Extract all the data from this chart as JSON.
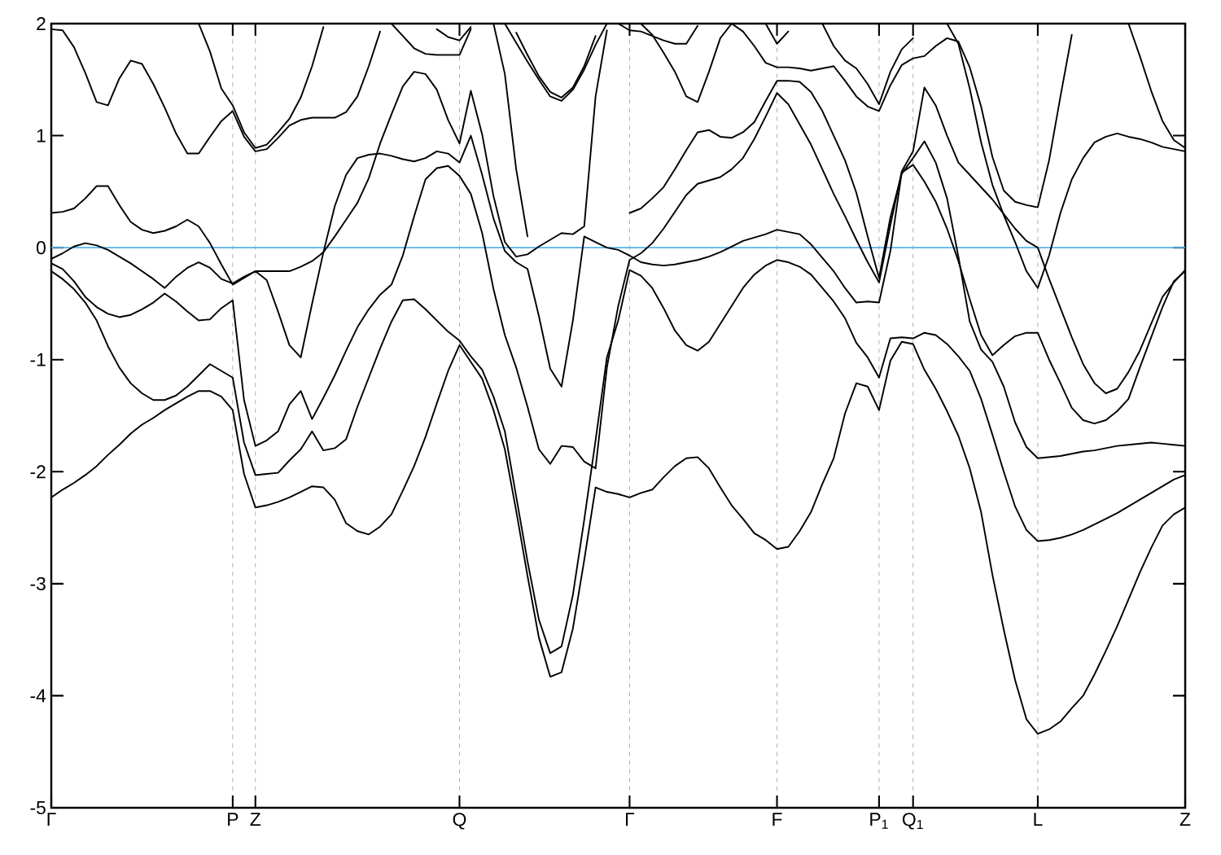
{
  "chart_data": {
    "type": "line",
    "color": "#000000",
    "grid": "x",
    "ylim": [
      -5,
      2
    ],
    "categories": [
      "Γ",
      null,
      null,
      null,
      null,
      null,
      null,
      null,
      null,
      null,
      null,
      null,
      null,
      null,
      null,
      null,
      "P",
      null,
      "Z",
      null,
      null,
      null,
      null,
      null,
      null,
      null,
      null,
      null,
      null,
      null,
      null,
      null,
      null,
      null,
      null,
      null,
      "Q",
      null,
      null,
      null,
      null,
      null,
      null,
      null,
      null,
      null,
      null,
      null,
      null,
      null,
      null,
      "Γ",
      null,
      null,
      null,
      null,
      null,
      null,
      null,
      null,
      null,
      null,
      null,
      null,
      "F",
      null,
      null,
      null,
      null,
      null,
      null,
      null,
      null,
      "P$_{1}$",
      null,
      null,
      "Q$_{1}$",
      null,
      null,
      null,
      null,
      null,
      null,
      null,
      null,
      null,
      null,
      "L",
      null,
      null,
      null,
      null,
      null,
      null,
      null,
      null,
      null,
      null,
      null,
      null,
      "Z"
    ],
    "yticks": [
      -5,
      -4,
      -3,
      -2,
      -1,
      0,
      1,
      2
    ],
    "ref_lines": [
      {
        "axis": "y",
        "value": 0,
        "color": "#56b4e9"
      }
    ],
    "series": [
      {
        "values": [
          1.95,
          1.94,
          1.79,
          1.56,
          1.3,
          1.27,
          1.51,
          1.67,
          1.64,
          1.46,
          1.25,
          1.02,
          0.84,
          0.84,
          0.99,
          1.13,
          1.22,
          0.99,
          0.86,
          0.88,
          0.98,
          1.09,
          1.14,
          1.16,
          1.16,
          1.16,
          1.21,
          1.35,
          1.62,
          1.93,
          null,
          null,
          null,
          null,
          null,
          null,
          null,
          null,
          null,
          null,
          null,
          null,
          null,
          null,
          null,
          null,
          null,
          null,
          null,
          null,
          null,
          null,
          null,
          null,
          null,
          null,
          null,
          null,
          null,
          null,
          null,
          null,
          null,
          null,
          null,
          null,
          null,
          null,
          null,
          null,
          null,
          null,
          null,
          null,
          null,
          null,
          null,
          null,
          null,
          null,
          null,
          null,
          null,
          null,
          null,
          null,
          null,
          null,
          null,
          null,
          null,
          null,
          null,
          null,
          null,
          null,
          null,
          null,
          null,
          null,
          null
        ]
      },
      {
        "values": [
          null,
          null,
          null,
          null,
          null,
          null,
          null,
          null,
          null,
          null,
          null,
          null,
          null,
          2.0,
          1.75,
          1.42,
          1.27,
          1.03,
          0.89,
          0.92,
          1.03,
          1.15,
          1.34,
          1.62,
          1.97,
          null,
          null,
          null,
          null,
          null,
          null,
          null,
          null,
          null,
          null,
          null,
          null,
          null,
          null,
          null,
          null,
          null,
          null,
          null,
          null,
          null,
          null,
          null,
          null,
          null,
          null,
          null,
          null,
          null,
          null,
          null,
          null,
          null,
          null,
          null,
          null,
          null,
          null,
          null,
          null,
          null,
          null,
          null,
          null,
          null,
          null,
          null,
          null,
          null,
          null,
          null,
          null,
          null,
          null,
          null,
          null,
          null,
          null,
          null,
          null,
          null,
          null,
          null,
          null,
          null,
          null,
          null,
          null,
          null,
          null,
          null,
          null,
          null,
          null,
          null,
          null
        ]
      },
      {
        "values": [
          null,
          null,
          null,
          null,
          null,
          null,
          null,
          null,
          null,
          null,
          null,
          null,
          null,
          null,
          null,
          null,
          null,
          null,
          null,
          null,
          null,
          null,
          null,
          null,
          null,
          null,
          null,
          null,
          null,
          null,
          2.0,
          1.89,
          1.78,
          1.73,
          1.72,
          1.72,
          1.72,
          1.95,
          null,
          null,
          null,
          null,
          null,
          null,
          null,
          null,
          null,
          null,
          null,
          null,
          null,
          null,
          null,
          null,
          null,
          null,
          null,
          null,
          null,
          null,
          null,
          null,
          null,
          null,
          null,
          null,
          null,
          null,
          null,
          null,
          null,
          null,
          null,
          null,
          null,
          null,
          null,
          null,
          null,
          null,
          null,
          null,
          null,
          null,
          null,
          null,
          null,
          null,
          null,
          null,
          null,
          null,
          null,
          null,
          null,
          null,
          null,
          null,
          null,
          null,
          null
        ]
      },
      {
        "values": [
          null,
          null,
          null,
          null,
          null,
          null,
          null,
          null,
          null,
          null,
          null,
          null,
          null,
          null,
          null,
          null,
          null,
          null,
          null,
          null,
          null,
          null,
          null,
          null,
          null,
          null,
          null,
          null,
          null,
          null,
          null,
          null,
          null,
          null,
          1.95,
          1.88,
          1.85,
          1.97,
          null,
          null,
          null,
          null,
          null,
          null,
          null,
          null,
          null,
          null,
          null,
          null,
          null,
          null,
          null,
          null,
          null,
          null,
          null,
          null,
          null,
          null,
          null,
          null,
          null,
          null,
          null,
          null,
          null,
          null,
          null,
          null,
          null,
          null,
          null,
          null,
          null,
          null,
          null,
          null,
          null,
          null,
          null,
          null,
          null,
          null,
          null,
          null,
          null,
          null,
          null,
          null,
          null,
          null,
          null,
          null,
          null,
          null,
          null,
          null,
          null,
          null,
          null
        ]
      },
      {
        "values": [
          0.31,
          0.32,
          0.35,
          0.44,
          0.55,
          0.55,
          0.38,
          0.23,
          0.16,
          0.13,
          0.15,
          0.19,
          0.25,
          0.19,
          0.04,
          -0.15,
          -0.33,
          -0.27,
          -0.21,
          -0.29,
          -0.57,
          -0.87,
          -0.98,
          -0.5,
          -0.04,
          0.37,
          0.65,
          0.8,
          0.83,
          0.84,
          0.82,
          0.79,
          0.77,
          0.8,
          0.86,
          0.84,
          0.76,
          1.0,
          0.65,
          0.26,
          -0.03,
          -0.13,
          -0.19,
          -0.61,
          -1.08,
          -1.24,
          -0.65,
          0.1,
          0.05,
          0.0,
          -0.02,
          -0.07,
          -0.13,
          -0.15,
          -0.16,
          -0.15,
          -0.13,
          -0.11,
          -0.08,
          -0.04,
          0.01,
          0.06,
          0.09,
          0.12,
          0.16,
          0.14,
          0.12,
          0.03,
          -0.09,
          -0.21,
          -0.36,
          -0.49,
          -0.48,
          -0.49,
          -0.03,
          0.67,
          0.74,
          0.59,
          0.41,
          0.17,
          -0.12,
          -0.46,
          -0.78,
          -0.96,
          -0.87,
          -0.79,
          -0.76,
          -0.76,
          -1.0,
          -1.21,
          -1.43,
          -1.54,
          -1.57,
          -1.54,
          -1.46,
          -1.35,
          -1.07,
          -0.8,
          -0.53,
          -0.3,
          -0.21
        ]
      },
      {
        "values": [
          -0.1,
          -0.05,
          0.01,
          0.04,
          0.02,
          -0.02,
          -0.08,
          -0.14,
          -0.21,
          -0.28,
          -0.36,
          -0.26,
          -0.18,
          -0.13,
          -0.18,
          -0.28,
          -0.32,
          -0.26,
          -0.21,
          -0.21,
          -0.21,
          -0.21,
          -0.17,
          -0.12,
          -0.04,
          0.1,
          0.25,
          0.4,
          0.62,
          0.93,
          1.19,
          1.44,
          1.57,
          1.55,
          1.41,
          1.14,
          0.93,
          1.4,
          1.01,
          0.46,
          0.05,
          -0.08,
          -0.06,
          0.01,
          0.07,
          0.13,
          0.12,
          0.19,
          1.35,
          1.94,
          null,
          null,
          null,
          null,
          null,
          null,
          null,
          null,
          null,
          null,
          null,
          null,
          null,
          null,
          null,
          null,
          null,
          null,
          null,
          null,
          null,
          null,
          null,
          null,
          null,
          null,
          null,
          null,
          null,
          null,
          null,
          null,
          null,
          null,
          null,
          null,
          null,
          null,
          null,
          null,
          null,
          null,
          null,
          null,
          null,
          null,
          null,
          null,
          null,
          null,
          null
        ]
      },
      {
        "values": [
          -0.14,
          -0.19,
          -0.3,
          -0.44,
          -0.53,
          -0.59,
          -0.62,
          -0.6,
          -0.55,
          -0.49,
          -0.41,
          -0.48,
          -0.57,
          -0.65,
          -0.64,
          -0.54,
          -0.47,
          -1.36,
          -1.77,
          -1.72,
          -1.64,
          -1.4,
          -1.28,
          -1.53,
          -1.34,
          -1.14,
          -0.92,
          -0.71,
          -0.55,
          -0.42,
          -0.33,
          -0.07,
          0.28,
          0.61,
          0.71,
          0.73,
          0.64,
          0.48,
          0.13,
          -0.37,
          -0.78,
          -1.07,
          -1.42,
          -1.8,
          -1.93,
          -1.77,
          -1.78,
          -1.91,
          -1.97,
          -1.07,
          -0.52,
          -0.11,
          -0.05,
          0.04,
          0.17,
          0.32,
          0.47,
          0.57,
          0.6,
          0.63,
          0.7,
          0.8,
          0.97,
          1.17,
          1.38,
          1.28,
          1.1,
          0.92,
          0.7,
          0.48,
          0.28,
          0.07,
          -0.13,
          -0.31,
          0.2,
          0.68,
          0.86,
          1.43,
          1.27,
          1.0,
          0.76,
          0.65,
          0.54,
          0.43,
          0.3,
          0.17,
          0.06,
          0.0,
          -0.28,
          -0.54,
          -0.8,
          -1.04,
          -1.21,
          -1.3,
          -1.26,
          -1.11,
          -0.92,
          -0.68,
          -0.44,
          -0.31,
          -0.2
        ]
      },
      {
        "values": [
          -0.21,
          -0.28,
          -0.37,
          -0.49,
          -0.65,
          -0.88,
          -1.07,
          -1.21,
          -1.3,
          -1.36,
          -1.36,
          -1.32,
          -1.24,
          -1.14,
          -1.04,
          -1.1,
          -1.16,
          -1.74,
          -2.03,
          -2.02,
          -2.01,
          -1.9,
          -1.8,
          -1.64,
          -1.81,
          -1.79,
          -1.71,
          -1.42,
          -1.16,
          -0.9,
          -0.66,
          -0.47,
          -0.46,
          -0.55,
          -0.65,
          -0.75,
          -0.83,
          -0.97,
          -1.09,
          -1.33,
          -1.64,
          -2.22,
          -2.8,
          -3.32,
          -3.62,
          -3.56,
          -3.1,
          -2.43,
          -1.72,
          -0.98,
          -0.65,
          -0.2,
          -0.25,
          -0.36,
          -0.54,
          -0.74,
          -0.87,
          -0.92,
          -0.84,
          -0.68,
          -0.52,
          -0.36,
          -0.24,
          -0.16,
          -0.11,
          -0.13,
          -0.17,
          -0.24,
          -0.36,
          -0.48,
          -0.63,
          -0.85,
          -0.98,
          -1.16,
          -0.81,
          -0.8,
          -0.81,
          -0.76,
          -0.78,
          -0.86,
          -0.97,
          -1.1,
          -1.35,
          -1.67,
          -2.0,
          -2.31,
          -2.52,
          -2.62,
          -2.61,
          -2.59,
          -2.56,
          -2.52,
          -2.47,
          -2.42,
          -2.37,
          -2.31,
          -2.25,
          -2.19,
          -2.13,
          -2.07,
          -2.03
        ]
      },
      {
        "values": [
          null,
          null,
          null,
          null,
          null,
          null,
          null,
          null,
          null,
          null,
          null,
          null,
          null,
          null,
          null,
          null,
          null,
          null,
          null,
          null,
          null,
          null,
          null,
          null,
          null,
          null,
          null,
          null,
          null,
          null,
          null,
          null,
          null,
          null,
          null,
          null,
          null,
          null,
          null,
          null,
          null,
          null,
          null,
          null,
          null,
          null,
          null,
          null,
          null,
          null,
          2.0,
          1.94,
          1.93,
          1.89,
          1.85,
          1.82,
          1.82,
          1.98,
          null,
          null,
          null,
          null,
          null,
          null,
          null,
          null,
          null,
          null,
          null,
          null,
          null,
          null,
          null,
          null,
          null,
          null,
          null,
          null,
          null,
          null,
          null,
          null,
          null,
          null,
          null,
          null,
          null,
          null,
          null,
          null,
          null,
          null,
          null,
          null,
          null,
          null,
          null,
          null,
          null,
          null,
          null
        ]
      },
      {
        "values": [
          null,
          null,
          null,
          null,
          null,
          null,
          null,
          null,
          null,
          null,
          null,
          null,
          null,
          null,
          null,
          null,
          null,
          null,
          null,
          null,
          null,
          null,
          null,
          null,
          null,
          null,
          null,
          null,
          null,
          null,
          null,
          null,
          null,
          null,
          null,
          null,
          null,
          null,
          null,
          null,
          null,
          null,
          null,
          null,
          null,
          null,
          null,
          null,
          null,
          null,
          null,
          null,
          2.0,
          1.9,
          1.74,
          1.57,
          1.35,
          1.3,
          1.57,
          1.87,
          2.0,
          1.93,
          1.8,
          1.65,
          1.61,
          1.61,
          1.6,
          1.58,
          1.6,
          1.62,
          1.49,
          1.35,
          1.26,
          1.22,
          1.45,
          1.63,
          1.69,
          1.71,
          1.8,
          1.87,
          1.84,
          1.61,
          1.26,
          0.81,
          0.51,
          0.41,
          0.38,
          0.36,
          0.78,
          1.35,
          1.9,
          null,
          null,
          null,
          null,
          null,
          null,
          null,
          null,
          null,
          null
        ]
      },
      {
        "values": [
          null,
          null,
          null,
          null,
          null,
          null,
          null,
          null,
          null,
          null,
          null,
          null,
          null,
          null,
          null,
          null,
          null,
          null,
          null,
          null,
          null,
          null,
          null,
          null,
          null,
          null,
          null,
          null,
          null,
          null,
          null,
          null,
          null,
          null,
          null,
          null,
          null,
          null,
          null,
          null,
          2.0,
          1.83,
          1.66,
          1.5,
          1.35,
          1.31,
          1.41,
          1.59,
          1.81,
          2.0,
          null,
          null,
          null,
          null,
          null,
          null,
          null,
          null,
          null,
          null,
          null,
          null,
          null,
          null,
          null,
          null,
          null,
          null,
          null,
          null,
          null,
          null,
          null,
          null,
          null,
          null,
          null,
          null,
          null,
          null,
          null,
          null,
          null,
          null,
          null,
          null,
          null,
          null,
          null,
          null,
          null,
          null,
          null,
          null,
          null,
          null,
          null,
          null,
          null,
          null,
          null
        ]
      },
      {
        "values": [
          null,
          null,
          null,
          null,
          null,
          null,
          null,
          null,
          null,
          null,
          null,
          null,
          null,
          null,
          null,
          null,
          null,
          null,
          null,
          null,
          null,
          null,
          null,
          null,
          null,
          null,
          null,
          null,
          null,
          null,
          null,
          null,
          null,
          null,
          null,
          null,
          null,
          null,
          null,
          null,
          null,
          1.92,
          1.72,
          1.53,
          1.39,
          1.34,
          1.43,
          1.62,
          1.89,
          null,
          null,
          null,
          null,
          null,
          null,
          null,
          null,
          null,
          null,
          null,
          null,
          null,
          null,
          null,
          null,
          null,
          null,
          null,
          null,
          null,
          null,
          null,
          null,
          null,
          null,
          null,
          null,
          null,
          null,
          null,
          null,
          null,
          null,
          null,
          null,
          null,
          null,
          null,
          null,
          null,
          null,
          null,
          null,
          null,
          null,
          null,
          null,
          null,
          null,
          null,
          null
        ]
      },
      {
        "values": [
          null,
          null,
          null,
          null,
          null,
          null,
          null,
          null,
          null,
          null,
          null,
          null,
          null,
          null,
          null,
          null,
          null,
          null,
          null,
          null,
          null,
          null,
          null,
          null,
          null,
          null,
          null,
          null,
          null,
          null,
          null,
          null,
          null,
          null,
          null,
          null,
          null,
          null,
          null,
          2.0,
          1.55,
          0.7,
          0.1,
          null,
          null,
          null,
          null,
          null,
          null,
          null,
          null,
          null,
          null,
          null,
          null,
          null,
          null,
          null,
          null,
          null,
          null,
          null,
          null,
          null,
          null,
          null,
          null,
          null,
          null,
          null,
          null,
          null,
          null,
          null,
          null,
          null,
          null,
          null,
          null,
          null,
          null,
          null,
          null,
          null,
          null,
          null,
          null,
          null,
          null,
          null,
          null,
          null,
          null,
          null,
          null,
          null,
          null,
          null,
          null,
          null,
          null
        ]
      },
      {
        "values": [
          null,
          null,
          null,
          null,
          null,
          null,
          null,
          null,
          null,
          null,
          null,
          null,
          null,
          null,
          null,
          null,
          null,
          null,
          null,
          null,
          null,
          null,
          null,
          null,
          null,
          null,
          null,
          null,
          null,
          null,
          null,
          null,
          null,
          null,
          null,
          null,
          null,
          null,
          null,
          null,
          null,
          null,
          null,
          null,
          null,
          null,
          null,
          null,
          null,
          null,
          null,
          0.31,
          0.35,
          0.44,
          0.54,
          0.7,
          0.87,
          1.03,
          1.05,
          0.99,
          0.98,
          1.03,
          1.12,
          1.31,
          1.49,
          1.49,
          1.48,
          1.39,
          1.22,
          1.0,
          0.78,
          0.49,
          0.1,
          -0.27,
          0.27,
          0.66,
          0.8,
          0.95,
          0.76,
          0.44,
          -0.08,
          -0.66,
          -0.91,
          -1.02,
          -1.24,
          -1.56,
          -1.78,
          -1.88,
          -1.87,
          -1.86,
          -1.84,
          -1.82,
          -1.81,
          -1.79,
          -1.77,
          -1.76,
          -1.75,
          -1.74,
          -1.75,
          -1.76,
          -1.77
        ]
      },
      {
        "values": [
          null,
          null,
          null,
          null,
          null,
          null,
          null,
          null,
          null,
          null,
          null,
          null,
          null,
          null,
          null,
          null,
          null,
          null,
          null,
          null,
          null,
          null,
          null,
          null,
          null,
          null,
          null,
          null,
          null,
          null,
          null,
          null,
          null,
          null,
          null,
          null,
          null,
          null,
          null,
          null,
          null,
          null,
          null,
          null,
          null,
          null,
          null,
          null,
          null,
          null,
          null,
          null,
          null,
          null,
          null,
          null,
          null,
          null,
          null,
          null,
          null,
          null,
          null,
          null,
          null,
          null,
          null,
          null,
          2.0,
          1.8,
          1.67,
          1.6,
          1.46,
          1.28,
          1.57,
          1.77,
          1.87,
          null,
          null,
          null,
          null,
          null,
          null,
          null,
          null,
          null,
          null,
          null,
          null,
          null,
          null,
          null,
          null,
          null,
          null,
          null,
          null,
          null,
          null,
          null,
          null
        ]
      },
      {
        "values": [
          null,
          null,
          null,
          null,
          null,
          null,
          null,
          null,
          null,
          null,
          null,
          null,
          null,
          null,
          null,
          null,
          null,
          null,
          null,
          null,
          null,
          null,
          null,
          null,
          null,
          null,
          null,
          null,
          null,
          null,
          null,
          null,
          null,
          null,
          null,
          null,
          null,
          null,
          null,
          null,
          null,
          null,
          null,
          null,
          null,
          null,
          null,
          null,
          null,
          null,
          null,
          null,
          null,
          null,
          null,
          null,
          null,
          null,
          null,
          null,
          null,
          null,
          null,
          2.0,
          1.82,
          1.93,
          null,
          null,
          null,
          null,
          null,
          null,
          null,
          null,
          null,
          null,
          null,
          null,
          null,
          null,
          null,
          null,
          null,
          null,
          null,
          null,
          null,
          null,
          null,
          null,
          null,
          null,
          null,
          null,
          null,
          null,
          null,
          null,
          null,
          null,
          null
        ]
      },
      {
        "values": [
          null,
          null,
          null,
          null,
          null,
          null,
          null,
          null,
          null,
          null,
          null,
          null,
          null,
          null,
          null,
          null,
          null,
          null,
          null,
          null,
          null,
          null,
          null,
          null,
          null,
          null,
          null,
          null,
          null,
          null,
          null,
          null,
          null,
          null,
          null,
          null,
          null,
          null,
          null,
          null,
          null,
          null,
          null,
          null,
          null,
          null,
          null,
          null,
          null,
          null,
          null,
          null,
          null,
          null,
          null,
          null,
          null,
          null,
          null,
          null,
          null,
          null,
          null,
          null,
          null,
          null,
          null,
          null,
          null,
          null,
          null,
          null,
          null,
          null,
          null,
          null,
          null,
          null,
          null,
          2.0,
          1.82,
          1.42,
          0.94,
          0.56,
          0.29,
          0.05,
          -0.21,
          -0.36,
          -0.07,
          0.31,
          0.61,
          0.8,
          0.94,
          0.99,
          1.02,
          0.99,
          0.97,
          0.94,
          0.9,
          0.88,
          0.86
        ]
      },
      {
        "values": [
          null,
          null,
          null,
          null,
          null,
          null,
          null,
          null,
          null,
          null,
          null,
          null,
          null,
          null,
          null,
          null,
          null,
          null,
          null,
          null,
          null,
          null,
          null,
          null,
          null,
          null,
          null,
          null,
          null,
          null,
          null,
          null,
          null,
          null,
          null,
          null,
          null,
          null,
          null,
          null,
          null,
          null,
          null,
          null,
          null,
          null,
          null,
          null,
          null,
          null,
          null,
          null,
          null,
          null,
          null,
          null,
          null,
          null,
          null,
          null,
          null,
          null,
          null,
          null,
          null,
          null,
          null,
          null,
          null,
          null,
          null,
          null,
          null,
          null,
          null,
          null,
          null,
          null,
          null,
          null,
          null,
          null,
          null,
          null,
          null,
          null,
          null,
          null,
          null,
          null,
          null,
          null,
          null,
          null,
          null,
          2.0,
          1.71,
          1.4,
          1.13,
          0.96,
          0.89
        ]
      },
      {
        "values": [
          -2.23,
          -2.16,
          -2.1,
          -2.03,
          -1.95,
          -1.85,
          -1.76,
          -1.66,
          -1.58,
          -1.52,
          -1.45,
          -1.39,
          -1.33,
          -1.28,
          -1.28,
          -1.33,
          -1.45,
          -2.02,
          -2.32,
          -2.3,
          -2.27,
          -2.23,
          -2.18,
          -2.13,
          -2.14,
          -2.25,
          -2.46,
          -2.53,
          -2.56,
          -2.49,
          -2.38,
          -2.17,
          -1.95,
          -1.69,
          -1.39,
          -1.1,
          -0.87,
          -1.02,
          -1.17,
          -1.45,
          -1.8,
          -2.35,
          -2.93,
          -3.48,
          -3.83,
          -3.79,
          -3.4,
          -2.79,
          -2.14,
          -2.18,
          -2.2,
          -2.23,
          -2.19,
          -2.16,
          -2.05,
          -1.95,
          -1.88,
          -1.87,
          -1.97,
          -2.14,
          -2.3,
          -2.42,
          -2.55,
          -2.61,
          -2.69,
          -2.67,
          -2.53,
          -2.36,
          -2.11,
          -1.88,
          -1.48,
          -1.21,
          -1.24,
          -1.45,
          -1.01,
          -0.84,
          -0.86,
          -1.09,
          -1.26,
          -1.46,
          -1.68,
          -1.97,
          -2.36,
          -2.92,
          -3.41,
          -3.86,
          -4.21,
          -4.34,
          -4.3,
          -4.23,
          -4.11,
          -4.0,
          -3.81,
          -3.6,
          -3.38,
          -3.14,
          -2.9,
          -2.68,
          -2.48,
          -2.38,
          -2.32
        ]
      }
    ]
  }
}
